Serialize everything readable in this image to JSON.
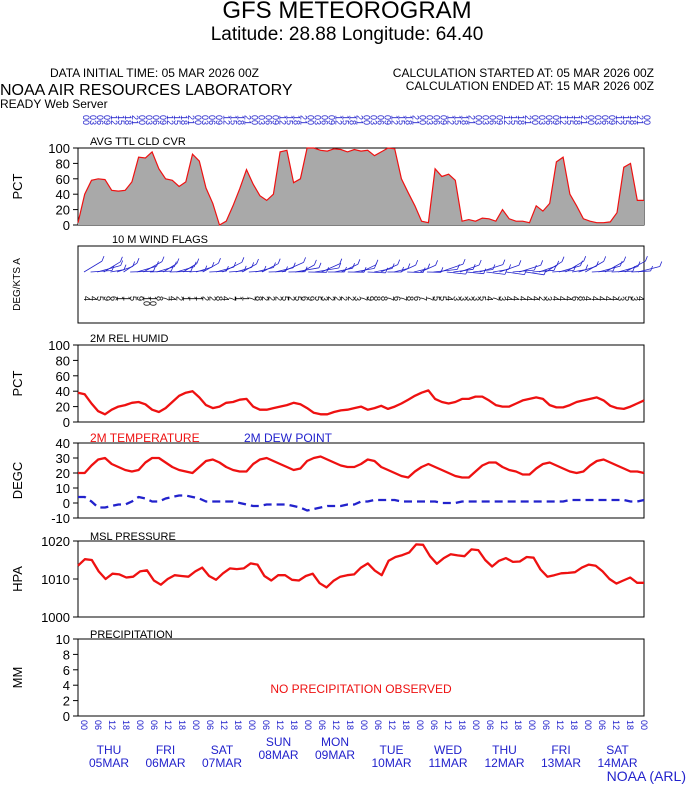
{
  "header": {
    "title": "GFS METEOROGRAM",
    "subtitle": "Latitude: 28.88 Longitude:  64.40",
    "data_initial": "DATA INITIAL TIME: 05 MAR 2026 00Z",
    "calc_started": "CALCULATION STARTED AT: 05 MAR 2026 00Z",
    "calc_ended": "CALCULATION ENDED AT: 15 MAR 2026 00Z",
    "lab": "NOAA AIR RESOURCES LABORATORY",
    "server": "READY Web Server"
  },
  "footer": "NOAA (ARL)",
  "colors": {
    "red": "#ee1111",
    "blue": "#2222cc",
    "gray": "#a9a9a9"
  },
  "chart_data": [
    {
      "type": "area",
      "title": "AVG TTL CLD CVR",
      "ylabel": "PCT",
      "ylim": [
        0,
        100
      ],
      "yticks": [
        0,
        20,
        40,
        60,
        80,
        100
      ],
      "values": [
        3,
        40,
        58,
        60,
        59,
        45,
        44,
        45,
        56,
        88,
        87,
        95,
        73,
        60,
        58,
        50,
        56,
        92,
        83,
        48,
        28,
        0,
        5,
        25,
        47,
        72,
        53,
        38,
        32,
        40,
        95,
        97,
        55,
        60,
        100,
        100,
        97,
        96,
        99,
        98,
        95,
        98,
        96,
        97,
        90,
        95,
        100,
        99,
        60,
        42,
        25,
        5,
        3,
        73,
        63,
        66,
        58,
        5,
        7,
        5,
        9,
        8,
        5,
        20,
        8,
        5,
        5,
        3,
        25,
        18,
        28,
        82,
        88,
        40,
        25,
        8,
        5,
        3,
        3,
        4,
        16,
        75,
        80,
        32,
        32
      ],
      "annotation": ""
    },
    {
      "type": "wind_flags",
      "title": "10 M  WIND FLAGS",
      "ylabel": "DEG/KTS A",
      "speed_labels": [
        "4",
        "4",
        "5",
        "9",
        "6",
        "1",
        "1",
        "5",
        "9",
        "10",
        "10",
        "8",
        "7",
        "4",
        "2",
        "1",
        "1",
        "1",
        "2",
        "2",
        "8",
        "4",
        "7",
        "1",
        "1",
        "7",
        "8",
        "2",
        "2",
        "2",
        "5",
        "2",
        "5",
        "6",
        "9",
        "5",
        "3",
        "2",
        "2",
        "2",
        "2",
        "3",
        "7",
        "9",
        "8",
        "8",
        "7",
        "6",
        "7",
        "8",
        "6",
        "7",
        "7",
        "5",
        "5",
        "4",
        "3",
        "3",
        "3",
        "3",
        "5",
        "4",
        "7",
        "3",
        "4",
        "4",
        "4",
        "4",
        "4",
        "2",
        "3",
        "4",
        "4",
        "4",
        "6",
        "8",
        "4",
        "4",
        "4",
        "4",
        "4",
        "3",
        "5",
        "3",
        "4"
      ]
    },
    {
      "type": "line",
      "title": "2M REL HUMID",
      "ylabel": "PCT",
      "ylim": [
        0,
        100
      ],
      "yticks": [
        0,
        20,
        40,
        60,
        80,
        100
      ],
      "series": [
        {
          "name": "2M REL HUMID",
          "color": "#ee1111",
          "values": [
            38,
            36,
            24,
            14,
            10,
            16,
            20,
            22,
            25,
            26,
            23,
            16,
            13,
            18,
            26,
            34,
            38,
            40,
            32,
            22,
            18,
            20,
            25,
            26,
            29,
            30,
            20,
            16,
            16,
            18,
            20,
            22,
            25,
            23,
            18,
            12,
            10,
            10,
            13,
            15,
            16,
            18,
            20,
            16,
            18,
            21,
            17,
            20,
            24,
            29,
            34,
            38,
            41,
            30,
            26,
            24,
            26,
            30,
            30,
            33,
            33,
            28,
            22,
            20,
            20,
            24,
            28,
            30,
            32,
            30,
            22,
            19,
            19,
            22,
            26,
            28,
            30,
            32,
            28,
            21,
            18,
            17,
            20,
            24,
            28
          ]
        }
      ],
      "annotation": ""
    },
    {
      "type": "line",
      "title": "2M TEMPERATURE",
      "ylabel": "DEGC",
      "ylim": [
        -10,
        40
      ],
      "yticks": [
        -10,
        0,
        10,
        20,
        30,
        40
      ],
      "series": [
        {
          "name": "2M TEMPERATURE",
          "color": "#ee1111",
          "values": [
            20,
            20,
            25,
            29,
            30,
            26,
            24,
            22,
            21,
            22,
            27,
            30,
            30,
            27,
            24,
            22,
            21,
            20,
            24,
            28,
            29,
            27,
            24,
            22,
            21,
            21,
            26,
            29,
            30,
            28,
            26,
            24,
            22,
            23,
            28,
            30,
            31,
            29,
            27,
            25,
            24,
            24,
            26,
            29,
            28,
            24,
            22,
            20,
            18,
            17,
            21,
            24,
            26,
            24,
            22,
            20,
            18,
            17,
            17,
            21,
            25,
            27,
            27,
            24,
            22,
            21,
            19,
            19,
            23,
            26,
            27,
            25,
            23,
            21,
            20,
            21,
            25,
            28,
            29,
            27,
            25,
            23,
            21,
            21,
            20
          ]
        },
        {
          "name": "2M  DEW POINT",
          "color": "#2222cc",
          "values": [
            4,
            4,
            1,
            -3,
            -3,
            -2,
            -1,
            -1,
            1,
            4,
            3,
            1,
            1,
            3,
            4,
            5,
            5,
            4,
            3,
            1,
            1,
            1,
            1,
            1,
            0,
            -1,
            -2,
            -2,
            -1,
            -1,
            -1,
            -1,
            -2,
            -3,
            -5,
            -4,
            -3,
            -2,
            -2,
            -2,
            -1,
            -1,
            1,
            1,
            2,
            2,
            2,
            2,
            1,
            1,
            1,
            1,
            1,
            1,
            0,
            0,
            0,
            1,
            1,
            1,
            1,
            1,
            1,
            1,
            1,
            1,
            1,
            1,
            1,
            1,
            1,
            1,
            1,
            2,
            2,
            2,
            2,
            2,
            2,
            2,
            2,
            2,
            1,
            1,
            2
          ]
        }
      ],
      "annotation": ""
    },
    {
      "type": "line",
      "title": "MSL PRESSURE",
      "ylabel": "HPA",
      "ylim": [
        1000,
        1020
      ],
      "yticks": [
        1000,
        1010,
        1020
      ],
      "series": [
        {
          "name": "MSL PRESSURE",
          "color": "#ee1111",
          "values": [
            1013.5,
            1015.2,
            1015.0,
            1012.0,
            1010.0,
            1011.4,
            1011.2,
            1010.4,
            1010.6,
            1012.0,
            1012.3,
            1009.6,
            1008.5,
            1010.0,
            1011.0,
            1010.8,
            1010.6,
            1012.0,
            1013.0,
            1010.8,
            1009.8,
            1011.5,
            1012.8,
            1012.6,
            1012.8,
            1014.1,
            1013.8,
            1010.8,
            1009.6,
            1011.0,
            1011.0,
            1009.8,
            1009.6,
            1010.8,
            1011.4,
            1008.9,
            1007.8,
            1009.5,
            1010.6,
            1011.0,
            1011.2,
            1013.0,
            1014.1,
            1012.2,
            1011.0,
            1014.8,
            1015.8,
            1016.3,
            1017.0,
            1019.1,
            1019.0,
            1016.0,
            1014.0,
            1015.5,
            1016.5,
            1016.2,
            1016.0,
            1017.8,
            1017.6,
            1015.0,
            1013.3,
            1014.8,
            1015.5,
            1014.5,
            1014.6,
            1015.8,
            1015.6,
            1012.5,
            1010.6,
            1011.0,
            1011.5,
            1011.6,
            1011.8,
            1013.0,
            1013.8,
            1013.5,
            1012.0,
            1010.0,
            1008.8,
            1009.6,
            1010.4,
            1009.0,
            1009.0
          ]
        }
      ],
      "annotation": ""
    },
    {
      "type": "line",
      "title": "PRECIPITATION",
      "ylabel": "MM",
      "ylim": [
        0,
        10
      ],
      "yticks": [
        0,
        2,
        4,
        6,
        8,
        10
      ],
      "series": [],
      "annotation": "NO PRECIPITATION OBSERVED"
    }
  ],
  "top_time_labels": [
    "00",
    "03",
    "06",
    "09",
    "12",
    "15",
    "18",
    "21",
    "00",
    "03",
    "06",
    "09",
    "12",
    "15",
    "18",
    "21",
    "00",
    "03",
    "06",
    "09",
    "12",
    "15",
    "18",
    "21",
    "00",
    "03",
    "06",
    "09",
    "12",
    "15",
    "18",
    "21",
    "00",
    "03",
    "06",
    "09",
    "12",
    "15",
    "18",
    "21",
    "00",
    "03",
    "06",
    "09",
    "12",
    "15",
    "18",
    "21",
    "00",
    "03",
    "06",
    "09",
    "12",
    "15",
    "18",
    "21",
    "00",
    "03",
    "06",
    "09",
    "12",
    "15",
    "18",
    "21",
    "00",
    "03",
    "06",
    "09",
    "12",
    "15",
    "18",
    "21",
    "00",
    "03",
    "06",
    "09",
    "12",
    "15",
    "18",
    "21",
    "00"
  ],
  "bottom_time_labels": [
    "00",
    "06",
    "12",
    "18",
    "00",
    "06",
    "12",
    "18",
    "00",
    "06",
    "12",
    "18",
    "00",
    "06",
    "12",
    "18",
    "00",
    "06",
    "12",
    "18",
    "00",
    "06",
    "12",
    "18",
    "00",
    "06",
    "12",
    "18",
    "00",
    "06",
    "12",
    "18",
    "00",
    "06",
    "12",
    "18",
    "00",
    "06",
    "12",
    "18",
    "00"
  ],
  "day_labels": [
    {
      "day": "THU",
      "date": "05MAR"
    },
    {
      "day": "FRI",
      "date": "06MAR"
    },
    {
      "day": "SAT",
      "date": "07MAR"
    },
    {
      "day": "SUN",
      "date": "08MAR"
    },
    {
      "day": "MON",
      "date": "09MAR"
    },
    {
      "day": "TUE",
      "date": "10MAR"
    },
    {
      "day": "WED",
      "date": "11MAR"
    },
    {
      "day": "THU",
      "date": "12MAR"
    },
    {
      "day": "FRI",
      "date": "13MAR"
    },
    {
      "day": "SAT",
      "date": "14MAR"
    }
  ]
}
